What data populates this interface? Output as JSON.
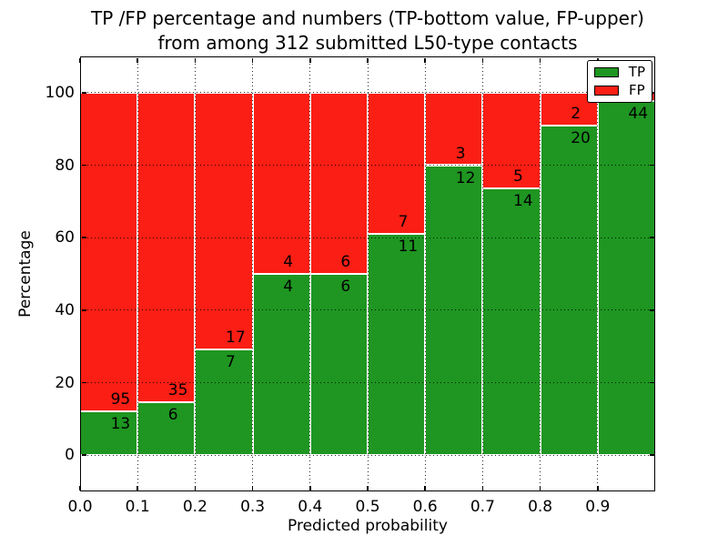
{
  "title": {
    "line1": "TP /FP percentage and numbers (TP-bottom value, FP-upper)",
    "line2": "from among 312 submitted L50-type contacts"
  },
  "axes": {
    "xlabel": "Predicted probability",
    "ylabel": "Percentage",
    "x_tick_labels": [
      "0.0",
      "0.1",
      "0.2",
      "0.3",
      "0.4",
      "0.5",
      "0.6",
      "0.7",
      "0.8",
      "0.9"
    ],
    "y_tick_values": [
      0,
      20,
      40,
      60,
      80,
      100
    ],
    "xlim": [
      0.0,
      1.0
    ],
    "ylim": [
      -10,
      110
    ],
    "grid": "dotted black on bin edges and y ticks"
  },
  "legend": {
    "position": "upper right",
    "items": [
      {
        "label": "TP",
        "color": "#1E9621"
      },
      {
        "label": "FP",
        "color": "#FA1E14"
      }
    ]
  },
  "chart_data": {
    "type": "bar",
    "stacked": true,
    "normalized_to_percent": true,
    "total_submitted": 312,
    "bin_width": 0.1,
    "bins": [
      {
        "x0": 0.0,
        "x1": 0.1,
        "tp": 13,
        "fp": 95
      },
      {
        "x0": 0.1,
        "x1": 0.2,
        "tp": 6,
        "fp": 35
      },
      {
        "x0": 0.2,
        "x1": 0.3,
        "tp": 7,
        "fp": 17
      },
      {
        "x0": 0.3,
        "x1": 0.4,
        "tp": 4,
        "fp": 4
      },
      {
        "x0": 0.4,
        "x1": 0.5,
        "tp": 6,
        "fp": 6
      },
      {
        "x0": 0.5,
        "x1": 0.6,
        "tp": 11,
        "fp": 7
      },
      {
        "x0": 0.6,
        "x1": 0.7,
        "tp": 12,
        "fp": 3
      },
      {
        "x0": 0.7,
        "x1": 0.8,
        "tp": 14,
        "fp": 5
      },
      {
        "x0": 0.8,
        "x1": 0.9,
        "tp": 20,
        "fp": 2
      },
      {
        "x0": 0.9,
        "x1": 1.0,
        "tp": 44,
        "fp": 1
      }
    ]
  },
  "colors": {
    "tp": "#1E9621",
    "fp": "#FA1E14",
    "bar_edge": "#FFFFFF",
    "axis": "#000000",
    "text": "#000000",
    "background": "#FFFFFF"
  }
}
